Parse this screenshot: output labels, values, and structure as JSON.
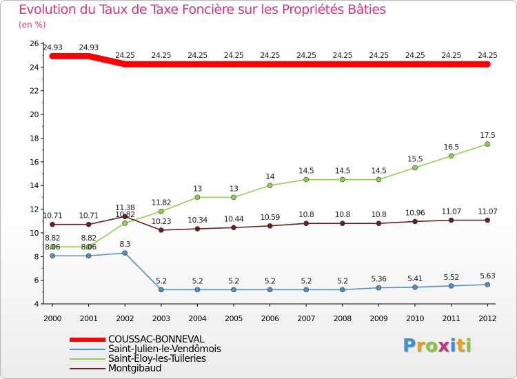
{
  "title": "Evolution du Taux de Taxe Foncière sur les Propriétés Bâties",
  "unit_label": "(en %)",
  "logo": {
    "letters": [
      "P",
      "r",
      "o",
      "x",
      "i",
      "t",
      "i"
    ],
    "colors": [
      "#3a8fd8",
      "#e8a21a",
      "#8cc63e",
      "#c2307a",
      "#3a8fd8",
      "#e8a21a",
      "#8cc63e"
    ]
  },
  "chart_data": {
    "type": "line",
    "title": "Evolution du Taux de Taxe Foncière sur les Propriétés Bâties",
    "ylabel": "(en %)",
    "xlabel": "",
    "x": [
      "2000",
      "2001",
      "2002",
      "2003",
      "2004",
      "2005",
      "2006",
      "2007",
      "2008",
      "2009",
      "2010",
      "2011",
      "2012"
    ],
    "ylim": [
      4,
      26
    ],
    "yticks": [
      "4",
      "6",
      "8",
      "10",
      "12",
      "14",
      "16",
      "18",
      "20",
      "22",
      "24",
      "26"
    ],
    "grid": false,
    "legend_position": "bottom-left",
    "series": [
      {
        "name": "COUSSAC-BONNEVAL",
        "color": "#ff0000",
        "values": [
          24.93,
          24.93,
          24.25,
          24.25,
          24.25,
          24.25,
          24.25,
          24.25,
          24.25,
          24.25,
          24.25,
          24.25,
          24.25
        ],
        "labels": [
          "24.93",
          "24.93",
          "24.25",
          "24.25",
          "24.25",
          "24.25",
          "24.25",
          "24.25",
          "24.25",
          "24.25",
          "24.25",
          "24.25",
          "24.25"
        ]
      },
      {
        "name": "Saint-Julien-le-Vendômois",
        "color": "#4f8fc8",
        "values": [
          8.06,
          8.06,
          8.3,
          5.2,
          5.2,
          5.2,
          5.2,
          5.2,
          5.2,
          5.36,
          5.41,
          5.52,
          5.63
        ],
        "labels": [
          "8.06",
          "8.06",
          "8.3",
          "5.2",
          "5.2",
          "5.2",
          "5.2",
          "5.2",
          "5.2",
          "5.36",
          "5.41",
          "5.52",
          "5.63"
        ]
      },
      {
        "name": "Saint-Eloy-les-Tuileries",
        "color": "#8fd14f",
        "values": [
          8.82,
          8.82,
          10.82,
          11.82,
          13,
          13,
          14,
          14.5,
          14.5,
          14.5,
          15.5,
          16.5,
          17.5
        ],
        "labels": [
          "8.82",
          "8.82",
          "10.82",
          "11.82",
          "13",
          "13",
          "14",
          "14.5",
          "14.5",
          "14.5",
          "15.5",
          "16.5",
          "17.5"
        ]
      },
      {
        "name": "Montgibaud",
        "color": "#6b1f24",
        "values": [
          10.71,
          10.71,
          11.38,
          10.23,
          10.34,
          10.44,
          10.59,
          10.8,
          10.8,
          10.8,
          10.96,
          11.07,
          11.07
        ],
        "labels": [
          "10.71",
          "10.71",
          "11.38",
          "10.23",
          "10.34",
          "10.44",
          "10.59",
          "10.8",
          "10.8",
          "10.8",
          "10.96",
          "11.07",
          "11.07"
        ]
      }
    ]
  }
}
